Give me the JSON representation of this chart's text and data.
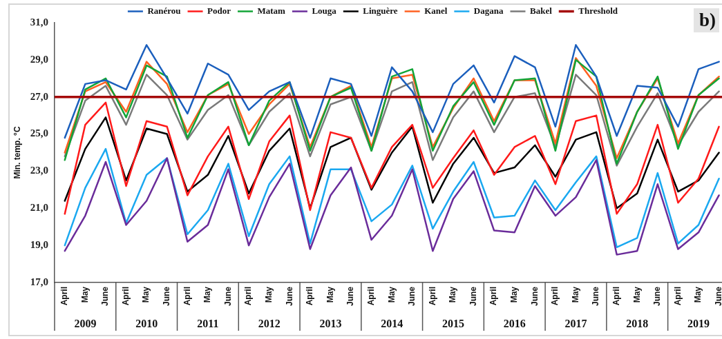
{
  "chart_data": {
    "type": "line",
    "title": "b)",
    "ylabel": "Min. temp. °C",
    "categories": [
      "April",
      "May",
      "June",
      "April",
      "May",
      "June",
      "April",
      "May",
      "June",
      "April",
      "May",
      "June",
      "April",
      "May",
      "June",
      "April",
      "May",
      "June",
      "April",
      "May",
      "June",
      "April",
      "May",
      "June",
      "April",
      "May",
      "June",
      "April",
      "May",
      "June",
      "April",
      "May",
      "June"
    ],
    "annotations": [
      "2009",
      "2010",
      "2011",
      "2012",
      "2013",
      "2014",
      "2015",
      "2016",
      "2017",
      "2018",
      "2019"
    ],
    "series": [
      {
        "name": "Ranérou",
        "color": "#1b5fbd",
        "values": [
          24.8,
          27.7,
          27.9,
          27.4,
          29.8,
          28.0,
          26.1,
          28.8,
          28.2,
          26.3,
          27.3,
          27.8,
          24.8,
          28.0,
          27.7,
          24.9,
          28.6,
          27.3,
          25.1,
          27.7,
          28.7,
          26.7,
          29.2,
          28.6,
          25.4,
          29.8,
          28.1,
          24.9,
          27.6,
          27.5,
          25.4,
          28.5,
          28.9
        ]
      },
      {
        "name": "Podor",
        "color": "#ff1a1a",
        "values": [
          20.7,
          25.5,
          26.7,
          22.2,
          25.7,
          25.4,
          21.7,
          23.8,
          25.4,
          21.5,
          24.6,
          26.0,
          20.9,
          25.1,
          24.8,
          22.1,
          24.3,
          25.5,
          22.1,
          23.7,
          25.2,
          22.8,
          24.3,
          24.9,
          22.3,
          25.7,
          26.0,
          20.7,
          22.3,
          25.5,
          21.3,
          22.6,
          25.4
        ]
      },
      {
        "name": "Matam",
        "color": "#12a537",
        "values": [
          23.6,
          27.4,
          28.0,
          25.9,
          28.7,
          28.1,
          24.8,
          27.1,
          27.8,
          24.4,
          26.8,
          27.8,
          24.1,
          27.0,
          27.5,
          24.1,
          28.1,
          28.5,
          24.1,
          26.5,
          27.8,
          25.5,
          27.9,
          28.0,
          24.1,
          29.0,
          28.1,
          23.4,
          26.2,
          28.1,
          24.2,
          27.1,
          28.0
        ]
      },
      {
        "name": "Louga",
        "color": "#6a2c9a",
        "values": [
          18.7,
          20.6,
          23.5,
          20.1,
          21.4,
          23.7,
          19.2,
          20.1,
          23.1,
          19.0,
          21.6,
          23.4,
          18.8,
          21.7,
          23.2,
          19.3,
          20.6,
          23.1,
          18.7,
          21.5,
          23.0,
          19.8,
          19.7,
          22.2,
          20.6,
          21.6,
          23.6,
          18.5,
          18.7,
          22.3,
          18.8,
          19.7,
          21.7
        ]
      },
      {
        "name": "Linguère",
        "color": "#000000",
        "values": [
          21.4,
          24.2,
          25.9,
          22.5,
          25.3,
          25.0,
          21.9,
          22.8,
          24.9,
          21.8,
          24.1,
          25.3,
          21.0,
          24.3,
          24.8,
          22.0,
          24.0,
          25.4,
          21.3,
          23.4,
          24.8,
          22.9,
          23.2,
          24.4,
          22.7,
          24.7,
          25.1,
          21.0,
          21.8,
          24.7,
          21.9,
          22.5,
          24.0
        ]
      },
      {
        "name": "Kanel",
        "color": "#ff6020",
        "values": [
          24.0,
          27.3,
          27.8,
          26.2,
          28.9,
          27.7,
          25.1,
          27.1,
          27.7,
          25.0,
          26.6,
          27.7,
          24.3,
          27.0,
          27.6,
          24.3,
          28.0,
          28.2,
          24.3,
          26.4,
          28.0,
          25.7,
          27.9,
          27.9,
          24.5,
          29.1,
          27.6,
          23.7,
          26.2,
          28.0,
          24.5,
          27.1,
          28.1
        ]
      },
      {
        "name": "Dagana",
        "color": "#1aa8f0",
        "values": [
          19.0,
          22.1,
          24.2,
          20.2,
          22.8,
          23.7,
          19.6,
          20.9,
          23.4,
          19.5,
          22.3,
          23.8,
          19.1,
          23.1,
          23.1,
          20.3,
          21.2,
          23.3,
          19.9,
          21.9,
          23.5,
          20.5,
          20.6,
          22.5,
          20.9,
          22.4,
          23.8,
          18.9,
          19.4,
          22.9,
          19.1,
          20.1,
          22.6
        ]
      },
      {
        "name": "Bakel",
        "color": "#7a7a7a",
        "values": [
          23.8,
          26.8,
          27.6,
          25.5,
          28.2,
          27.1,
          24.7,
          26.3,
          27.1,
          24.4,
          26.2,
          27.2,
          23.8,
          26.6,
          27.0,
          24.1,
          27.3,
          27.8,
          23.6,
          25.9,
          27.3,
          25.1,
          27.0,
          27.2,
          24.3,
          28.2,
          27.1,
          23.3,
          25.4,
          27.2,
          24.4,
          26.2,
          27.3
        ]
      }
    ],
    "ref_lines": [
      {
        "axis": "y",
        "value": 27,
        "label": "Threshold",
        "color": "#a50a0a"
      }
    ],
    "ylim": [
      17,
      31
    ],
    "yticks": [
      {
        "value": 17,
        "label": "17,0"
      },
      {
        "value": 19,
        "label": "19,0"
      },
      {
        "value": 21,
        "label": "21,0"
      },
      {
        "value": 23,
        "label": "23,0"
      },
      {
        "value": 25,
        "label": "25,0"
      },
      {
        "value": 27,
        "label": "27,0"
      },
      {
        "value": 29,
        "label": "29,0"
      },
      {
        "value": 31,
        "label": "31,0"
      }
    ],
    "legend": "top"
  }
}
